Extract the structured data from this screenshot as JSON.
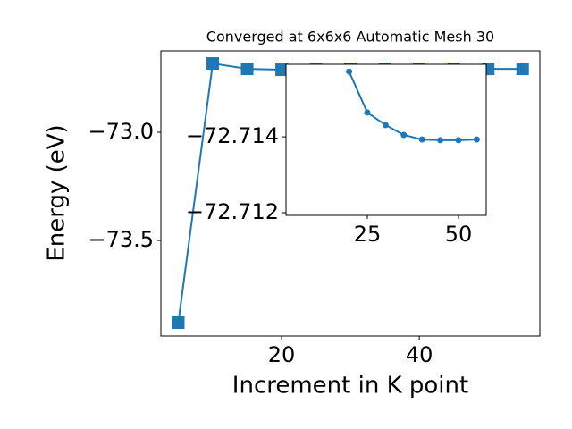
{
  "chart_data": [
    {
      "type": "line",
      "title": "Converged at 6x6x6 Automatic Mesh 30",
      "xlabel": "Increment in K point",
      "ylabel": "Energy (eV)",
      "x": [
        5,
        10,
        15,
        20,
        25,
        30,
        35,
        40,
        45,
        50,
        55
      ],
      "series": [
        {
          "color": "#1f77b4",
          "marker": "square",
          "values": [
            -73.88,
            -72.682,
            -72.707,
            -72.711,
            -72.711,
            -72.707,
            -72.707,
            -72.707,
            -72.707,
            -72.707,
            -72.707
          ]
        }
      ],
      "xlim": [
        2.47,
        57.5
      ],
      "ylim": [
        -73.942,
        -72.624
      ],
      "xticks": [
        20,
        40
      ],
      "yticks": [
        {
          "value": -73.5,
          "label": "−73.5"
        },
        {
          "value": -73.0,
          "label": "−73.0"
        }
      ]
    },
    {
      "type": "line",
      "x": [
        20,
        25,
        30,
        35,
        40,
        45,
        50,
        55
      ],
      "series": [
        {
          "color": "#1f77b4",
          "marker": "circle",
          "values": [
            -72.71572,
            -72.71464,
            -72.71431,
            -72.71405,
            -72.71393,
            -72.71391,
            -72.71391,
            -72.71393
          ]
        }
      ],
      "xlim": [
        2.7,
        57.6
      ],
      "ylim": [
        -72.71193,
        -72.71591
      ],
      "xticks": [
        25,
        50
      ],
      "yticks": [
        {
          "value": -72.714,
          "label": "−72.714"
        },
        {
          "value": -72.712,
          "label": "−72.712"
        }
      ]
    }
  ]
}
